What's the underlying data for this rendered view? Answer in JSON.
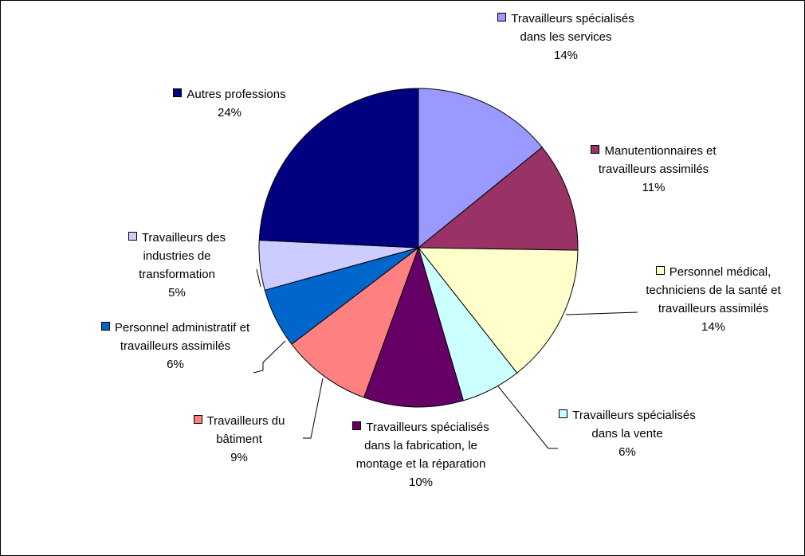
{
  "chart_data": {
    "type": "pie",
    "categories": [
      "Travailleurs spécialisés dans les services",
      "Manutentionnaires et travailleurs assimilés",
      "Personnel médical, techniciens de la santé et travailleurs assimilés",
      "Travailleurs spécialisés dans la vente",
      "Travailleurs spécialisés dans la fabrication, le montage et la réparation",
      "Travailleurs du bâtiment",
      "Personnel administratif et travailleurs assimilés",
      "Travailleurs des industries de transformation",
      "Autres professions"
    ],
    "values": [
      14,
      11,
      14,
      6,
      10,
      9,
      6,
      5,
      24
    ],
    "value_labels": [
      "14%",
      "11%",
      "14%",
      "6%",
      "10%",
      "9%",
      "6%",
      "5%",
      "24%"
    ],
    "colors": [
      "#9999ff",
      "#993366",
      "#ffffcc",
      "#ccffff",
      "#660066",
      "#ff8080",
      "#0066cc",
      "#ccccff",
      "#000080"
    ]
  }
}
